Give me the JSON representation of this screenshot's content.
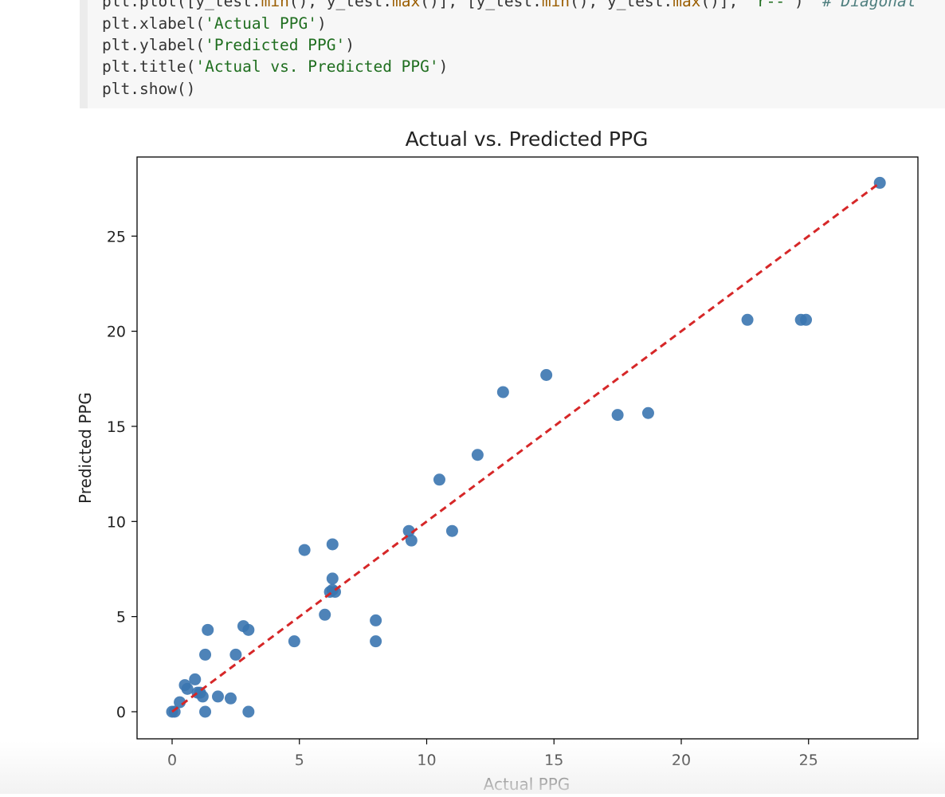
{
  "code": {
    "lines": [
      [
        {
          "t": "plt.plot([y_test.",
          "c": "fn"
        },
        {
          "t": "min",
          "c": "attr"
        },
        {
          "t": "(), y_test.",
          "c": "fn"
        },
        {
          "t": "max",
          "c": "attr"
        },
        {
          "t": "()], [y_test.",
          "c": "fn"
        },
        {
          "t": "min",
          "c": "attr"
        },
        {
          "t": "(), y_test.",
          "c": "fn"
        },
        {
          "t": "max",
          "c": "attr"
        },
        {
          "t": "()], ",
          "c": "fn"
        },
        {
          "t": "'r--'",
          "c": "str"
        },
        {
          "t": ")  ",
          "c": "fn"
        },
        {
          "t": "# Diagonal",
          "c": "com"
        }
      ],
      [
        {
          "t": "plt.xlabel(",
          "c": "fn"
        },
        {
          "t": "'Actual PPG'",
          "c": "str"
        },
        {
          "t": ")",
          "c": "fn"
        }
      ],
      [
        {
          "t": "plt.ylabel(",
          "c": "fn"
        },
        {
          "t": "'Predicted PPG'",
          "c": "str"
        },
        {
          "t": ")",
          "c": "fn"
        }
      ],
      [
        {
          "t": "plt.title(",
          "c": "fn"
        },
        {
          "t": "'Actual vs. Predicted PPG'",
          "c": "str"
        },
        {
          "t": ")",
          "c": "fn"
        }
      ],
      [
        {
          "t": "plt.show()",
          "c": "fn"
        }
      ]
    ]
  },
  "chart_data": {
    "type": "scatter",
    "title": "Actual vs. Predicted PPG",
    "xlabel": "Actual PPG",
    "ylabel": "Predicted PPG",
    "xlim": [
      -1.4,
      29.2
    ],
    "ylim": [
      -1.4,
      29.2
    ],
    "xticks": [
      0,
      5,
      10,
      15,
      20,
      25
    ],
    "yticks": [
      0,
      5,
      10,
      15,
      20,
      25
    ],
    "grid": false,
    "colors": {
      "points": "#3b76b0",
      "diagonal": "#d62728"
    },
    "series": [
      {
        "x": [
          0,
          0.1,
          0.3,
          0.5,
          0.6,
          0.9,
          1.0,
          1.1,
          1.2,
          1.3,
          1.3,
          1.4,
          1.8,
          2.3,
          2.5,
          2.8,
          3.0,
          3.0,
          4.8,
          5.2,
          6.0,
          6.2,
          6.3,
          6.3,
          6.4,
          6.3,
          8.0,
          8.0,
          9.3,
          9.4,
          10.5,
          11.0,
          12.0,
          13.0,
          14.7,
          17.5,
          18.7,
          22.6,
          24.7,
          24.9,
          27.8
        ],
        "y": [
          0,
          0,
          0.5,
          1.4,
          1.2,
          1.7,
          1.0,
          1.0,
          0.8,
          3.0,
          0,
          4.3,
          0.8,
          0.7,
          3.0,
          4.5,
          4.3,
          0,
          3.7,
          8.5,
          5.1,
          6.3,
          8.8,
          7.0,
          6.3,
          6.4,
          4.8,
          3.7,
          9.5,
          9.0,
          12.2,
          9.5,
          13.5,
          16.8,
          17.7,
          15.6,
          15.7,
          20.6,
          20.6,
          20.6,
          27.8
        ]
      }
    ],
    "diagonal": {
      "x": [
        0,
        27.8
      ],
      "y": [
        0,
        27.8
      ]
    }
  }
}
